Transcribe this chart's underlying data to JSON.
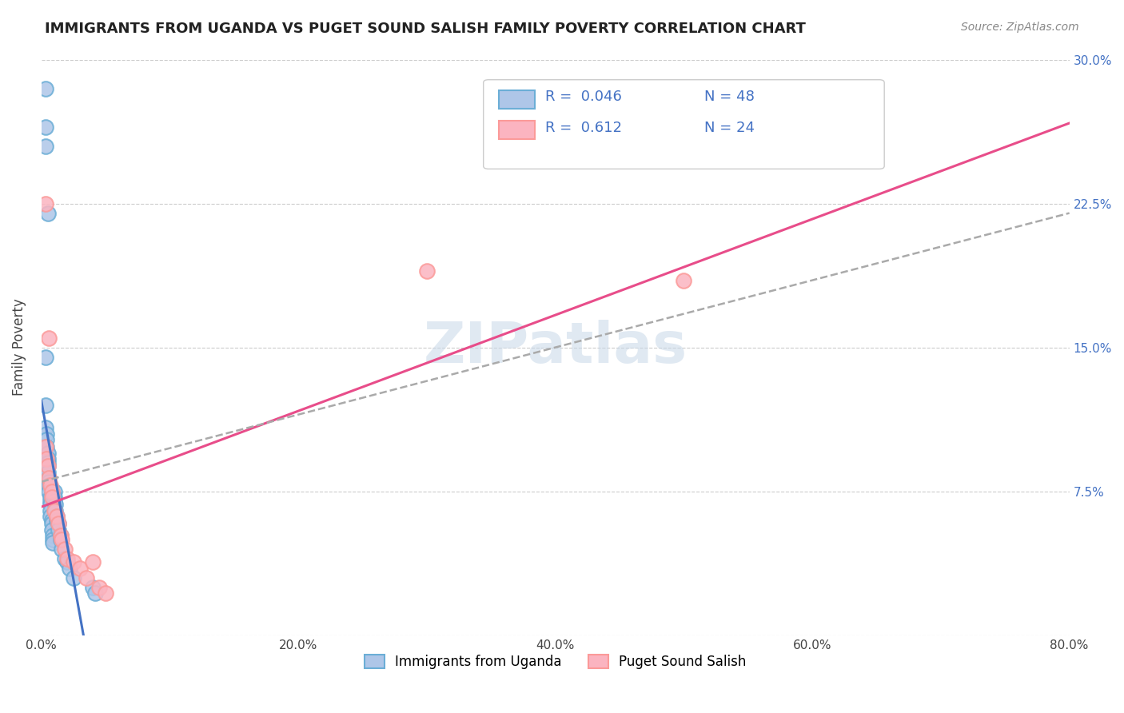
{
  "title": "IMMIGRANTS FROM UGANDA VS PUGET SOUND SALISH FAMILY POVERTY CORRELATION CHART",
  "source": "Source: ZipAtlas.com",
  "ylabel": "Family Poverty",
  "xlim": [
    0.0,
    0.8
  ],
  "ylim": [
    0.0,
    0.3
  ],
  "xticks": [
    0.0,
    0.2,
    0.4,
    0.6,
    0.8
  ],
  "xticklabels": [
    "0.0%",
    "20.0%",
    "40.0%",
    "60.0%",
    "80.0%"
  ],
  "yticks": [
    0.0,
    0.075,
    0.15,
    0.225,
    0.3
  ],
  "yticklabels_right": [
    "",
    "7.5%",
    "15.0%",
    "22.5%",
    "30.0%"
  ],
  "watermark": "ZIPatlas",
  "legend_R1": "0.046",
  "legend_N1": "48",
  "legend_R2": "0.612",
  "legend_N2": "24",
  "blue_color": "#6baed6",
  "pink_color": "#fb9a99",
  "blue_fill": "#aec6e8",
  "pink_fill": "#fbb4c0",
  "trend_blue": "#4472C4",
  "trend_pink": "#E84D8A",
  "background": "#ffffff",
  "grid_color": "#cccccc",
  "title_color": "#222222",
  "blue_dots_x": [
    0.003,
    0.003,
    0.003,
    0.003,
    0.003,
    0.004,
    0.004,
    0.004,
    0.005,
    0.005,
    0.005,
    0.005,
    0.005,
    0.006,
    0.006,
    0.006,
    0.006,
    0.007,
    0.007,
    0.007,
    0.007,
    0.007,
    0.008,
    0.008,
    0.008,
    0.009,
    0.009,
    0.009,
    0.01,
    0.01,
    0.01,
    0.011,
    0.011,
    0.012,
    0.012,
    0.013,
    0.013,
    0.015,
    0.015,
    0.016,
    0.018,
    0.02,
    0.022,
    0.025,
    0.04,
    0.042,
    0.005,
    0.003
  ],
  "blue_dots_y": [
    0.285,
    0.265,
    0.255,
    0.12,
    0.108,
    0.105,
    0.102,
    0.098,
    0.095,
    0.092,
    0.09,
    0.088,
    0.085,
    0.082,
    0.08,
    0.078,
    0.075,
    0.072,
    0.07,
    0.068,
    0.065,
    0.062,
    0.06,
    0.058,
    0.055,
    0.052,
    0.05,
    0.048,
    0.075,
    0.072,
    0.07,
    0.068,
    0.065,
    0.062,
    0.06,
    0.058,
    0.055,
    0.052,
    0.05,
    0.045,
    0.04,
    0.038,
    0.035,
    0.03,
    0.025,
    0.022,
    0.22,
    0.145
  ],
  "pink_dots_x": [
    0.003,
    0.003,
    0.004,
    0.005,
    0.006,
    0.006,
    0.007,
    0.008,
    0.008,
    0.01,
    0.012,
    0.013,
    0.015,
    0.016,
    0.018,
    0.02,
    0.025,
    0.03,
    0.035,
    0.04,
    0.045,
    0.05,
    0.3,
    0.5
  ],
  "pink_dots_y": [
    0.225,
    0.098,
    0.092,
    0.088,
    0.082,
    0.155,
    0.078,
    0.075,
    0.072,
    0.065,
    0.062,
    0.058,
    0.052,
    0.05,
    0.045,
    0.04,
    0.038,
    0.035,
    0.03,
    0.038,
    0.025,
    0.022,
    0.19,
    0.185
  ],
  "legend1_label": "Immigrants from Uganda",
  "legend2_label": "Puget Sound Salish"
}
